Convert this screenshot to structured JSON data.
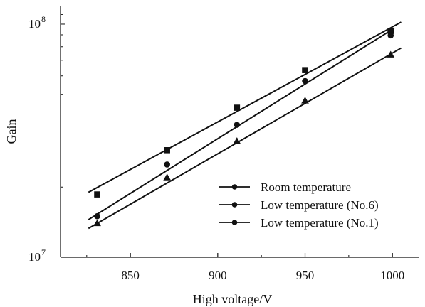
{
  "chart_data": {
    "type": "scatter",
    "title": "",
    "xlabel": "High voltage/V",
    "ylabel": "Gain",
    "xlim": [
      810,
      1015
    ],
    "ylim": [
      10000000,
      120000000
    ],
    "yscale": "log",
    "grid": false,
    "legend_position": "bottom-right",
    "x_ticks": [
      850,
      900,
      950,
      1000
    ],
    "y_ticks": [
      {
        "value": 10000000,
        "base": "10",
        "exp": "7"
      },
      {
        "value": 100000000,
        "base": "10",
        "exp": "8"
      }
    ],
    "series": [
      {
        "name": "Room temperature",
        "marker": "square",
        "x": [
          831,
          871,
          911,
          950,
          999
        ],
        "y": [
          18600000,
          28800000,
          43800000,
          63500000,
          93500000
        ],
        "fit_line": {
          "x": [
            826,
            1005
          ],
          "y": [
            19000000,
            102000000
          ]
        }
      },
      {
        "name": "Low temperature (No.6)",
        "marker": "circle",
        "x": [
          831,
          871,
          911,
          950,
          999
        ],
        "y": [
          15000000,
          25000000,
          37000000,
          57000000,
          89500000
        ],
        "fit_line": {
          "x": [
            826,
            1001
          ],
          "y": [
            14500000,
            96000000
          ]
        }
      },
      {
        "name": "Low temperature (No.1)",
        "marker": "triangle",
        "x": [
          831,
          871,
          911,
          950,
          999
        ],
        "y": [
          14000000,
          22000000,
          31500000,
          47000000,
          74000000
        ],
        "fit_line": {
          "x": [
            826,
            1005
          ],
          "y": [
            13300000,
            79000000
          ]
        }
      }
    ],
    "legend_marker": "circle",
    "colors": {
      "axis": "#111111",
      "series": "#111111"
    }
  }
}
